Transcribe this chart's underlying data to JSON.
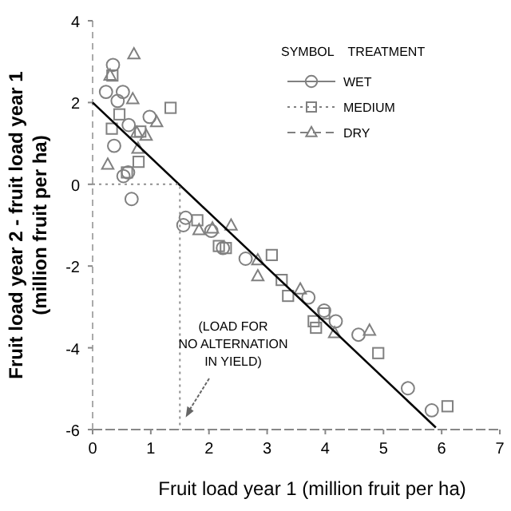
{
  "chart_data": {
    "type": "scatter",
    "xlabel": "Fruit load year 1 (million fruit per ha)",
    "ylabel": "Fruit load year 2 - fruit load year 1\n(million fruit per ha)",
    "legend_title": "SYMBOL    TREATMENT",
    "legend": "top right",
    "grid": false,
    "xlim": [
      0,
      7
    ],
    "xticks": [
      0,
      1,
      2,
      3,
      4,
      5,
      6,
      7
    ],
    "ylim": [
      -6,
      4
    ],
    "yticks": [
      -6,
      -4,
      -2,
      0,
      2,
      4
    ],
    "series": [
      {
        "name": "WET",
        "color": "#808080",
        "marker": "circle",
        "line_style": "solid",
        "x": [
          0.35,
          0.23,
          0.52,
          0.43,
          0.62,
          0.37,
          0.61,
          0.53,
          0.67,
          0.98,
          1.6,
          1.56,
          2.04,
          2.24,
          2.63,
          3.71,
          3.98,
          4.18,
          4.57,
          5.42,
          5.83
        ],
        "values": [
          2.92,
          2.26,
          2.26,
          2.04,
          1.45,
          0.94,
          0.29,
          0.2,
          -0.36,
          1.65,
          -0.82,
          -1.0,
          -1.14,
          -1.56,
          -1.82,
          -2.77,
          -3.09,
          -3.35,
          -3.68,
          -4.99,
          -5.53
        ]
      },
      {
        "name": "MEDIUM",
        "color": "#808080",
        "marker": "square",
        "line_style": "dotted",
        "x": [
          0.34,
          1.34,
          0.33,
          0.82,
          0.59,
          0.79,
          1.8,
          2.17,
          2.29,
          3.08,
          3.25,
          3.36,
          3.8,
          3.84,
          3.98,
          4.91,
          6.1,
          0.46
        ],
        "values": [
          2.66,
          1.87,
          1.36,
          1.29,
          0.29,
          0.55,
          -0.88,
          -1.51,
          -1.56,
          -1.73,
          -2.34,
          -2.73,
          -3.35,
          -3.51,
          -3.16,
          -4.13,
          -5.43,
          1.71
        ]
      },
      {
        "name": "DRY",
        "color": "#808080",
        "marker": "triangle",
        "line_style": "dashed",
        "x": [
          0.71,
          0.3,
          0.69,
          1.1,
          0.92,
          0.26,
          0.78,
          2.38,
          1.83,
          2.84,
          3.57,
          4.76,
          4.16,
          2.84,
          0.76,
          2.06
        ],
        "values": [
          3.18,
          2.66,
          2.08,
          1.52,
          1.19,
          0.48,
          0.87,
          -1.01,
          -1.12,
          -2.25,
          -2.57,
          -3.58,
          -3.64,
          -1.86,
          1.26,
          -1.08
        ]
      },
      {
        "type": "line",
        "color": "#000000",
        "line_style": "solid",
        "x": [
          0,
          5.9
        ],
        "values": [
          2.0,
          -5.95
        ]
      },
      {
        "type": "line",
        "color": "#909090",
        "line_style": "dotted",
        "x": [
          0,
          1.5,
          1.5
        ],
        "values": [
          0,
          0,
          -6
        ]
      }
    ],
    "annotations": [
      {
        "text": "(LOAD FOR\nNO ALTERNATION\nIN YIELD)",
        "x": 1.6,
        "y": -5.7
      }
    ]
  }
}
